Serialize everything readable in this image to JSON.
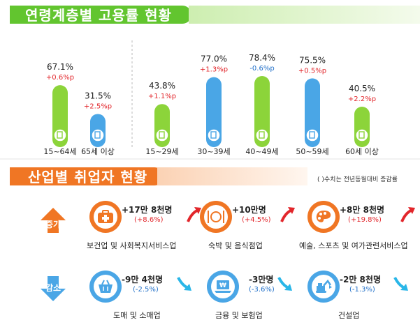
{
  "colors": {
    "green": "#8cd43a",
    "blue": "#4aa6e6",
    "header_green": "#62c52f",
    "header_orange": "#f07624",
    "increase_text": "#e2262b",
    "decrease_text": "#1e6ec8"
  },
  "section1": {
    "title": "연령계층별 고용률 현황"
  },
  "section2": {
    "title": "산업별 취업자 현황",
    "note": "( )수치는 전년동월대비 증감률",
    "increase_label": "증가",
    "decrease_label": "감소",
    "increase": [
      {
        "change": "+17만 8천명",
        "pct": "(+8.6%)",
        "name": "보건업 및 사회복지서비스업",
        "icon": "first-aid-icon"
      },
      {
        "change": "+10만명",
        "pct": "(+4.5%)",
        "name": "숙박 및 음식점업",
        "icon": "dining-icon"
      },
      {
        "change": "+8만 8천명",
        "pct": "(+19.8%)",
        "name": "예술, 스포츠 및 여가관련서비스업",
        "icon": "palette-icon"
      }
    ],
    "decrease": [
      {
        "change": "-9만 4천명",
        "pct": "(-2.5%)",
        "name": "도매 및 소매업",
        "icon": "shopping-basket-icon"
      },
      {
        "change": "-3만명",
        "pct": "(-3.6%)",
        "name": "금융 및 보험업",
        "icon": "won-laptop-icon"
      },
      {
        "change": "-2만 8천명",
        "pct": "(-1.3%)",
        "name": "건설업",
        "icon": "excavator-icon"
      }
    ]
  },
  "chart_data": {
    "type": "bar",
    "title": "연령계층별 고용률 현황",
    "unit": "%",
    "ylim": [
      0,
      100
    ],
    "grid": false,
    "categories": [
      "15~64세",
      "65세 이상",
      "15~29세",
      "30~39세",
      "40~49세",
      "50~59세",
      "60세 이상"
    ],
    "values": [
      67.1,
      31.5,
      43.8,
      77.0,
      78.4,
      75.5,
      40.5
    ],
    "value_labels": [
      "67.1%",
      "31.5%",
      "43.8%",
      "77.0%",
      "78.4%",
      "75.5%",
      "40.5%"
    ],
    "change_labels": [
      "+0.6%p",
      "+2.5%p",
      "+1.1%p",
      "+1.3%p",
      "-0.6%p",
      "+0.5%p",
      "+2.2%p"
    ],
    "bar_colors": [
      "#8cd43a",
      "#4aa6e6",
      "#8cd43a",
      "#4aa6e6",
      "#8cd43a",
      "#4aa6e6",
      "#8cd43a"
    ]
  }
}
